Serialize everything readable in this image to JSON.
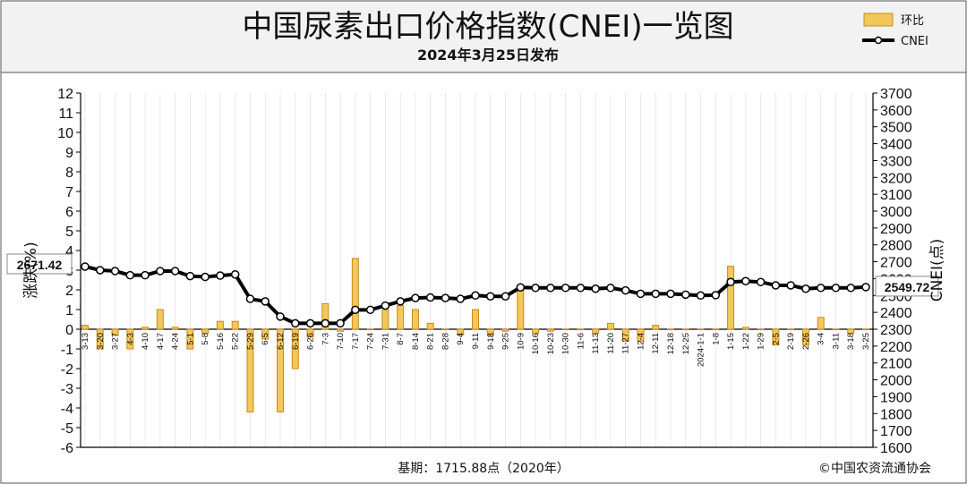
{
  "chart_data": {
    "type": "bar",
    "title": "中国尿素出口价格指数(CNEI)一览图",
    "subtitle": "2024年3月25日发布",
    "legend": [
      {
        "label": "环比",
        "kind": "bar"
      },
      {
        "label": "CNEI",
        "kind": "line"
      }
    ],
    "legend_position": "top-right",
    "y_left_label": "涨跌(%)",
    "y_right_label": "CNEI(点)",
    "y_left_range": [
      -6,
      12
    ],
    "y_right_range": [
      1600,
      3700
    ],
    "y_left_ticks": [
      "12",
      "11",
      "10",
      "9",
      "8",
      "7",
      "6",
      "5",
      "4",
      "3",
      "2",
      "1",
      "0",
      "-1",
      "-2",
      "-3",
      "-4",
      "-5",
      "-6"
    ],
    "y_right_ticks": [
      "3700",
      "3600",
      "3500",
      "3400",
      "3300",
      "3200",
      "3100",
      "3000",
      "2900",
      "2800",
      "2700",
      "2600",
      "2500",
      "2400",
      "2300",
      "2200",
      "2100",
      "2000",
      "1900",
      "1800",
      "1700",
      "1600"
    ],
    "categories": [
      "3-13",
      "3-20",
      "3-27",
      "4-3",
      "4-10",
      "4-17",
      "4-24",
      "5-1",
      "5-8",
      "5-16",
      "5-22",
      "5-29",
      "6-5",
      "6-12",
      "6-19",
      "6-26",
      "7-3",
      "7-10",
      "7-17",
      "7-24",
      "7-31",
      "8-7",
      "8-14",
      "8-21",
      "8-28",
      "9-4",
      "9-11",
      "9-18",
      "9-25",
      "10-9",
      "10-16",
      "10-23",
      "10-30",
      "11-6",
      "11-13",
      "11-20",
      "11-27",
      "12-4",
      "12-11",
      "12-18",
      "12-25",
      "2024-1-1",
      "1-8",
      "1-15",
      "1-22",
      "1-29",
      "2-5",
      "2-19",
      "2-26",
      "3-4",
      "3-11",
      "3-18",
      "3-25"
    ],
    "series": [
      {
        "name": "环比",
        "axis": "left",
        "values": [
          0.2,
          -1.0,
          -0.3,
          -1.0,
          0.1,
          1.0,
          0.1,
          -1.0,
          -0.2,
          0.4,
          0.4,
          -4.2,
          -0.5,
          -4.2,
          -2.0,
          -0.4,
          1.3,
          -0.1,
          3.6,
          0.0,
          1.0,
          1.2,
          1.0,
          0.3,
          0.0,
          -0.3,
          1.0,
          -0.3,
          -0.1,
          2.0,
          -0.2,
          -0.1,
          0.0,
          0.0,
          -0.2,
          0.3,
          -0.6,
          -0.6,
          0.2,
          0.0,
          0.0,
          0.0,
          0.0,
          3.2,
          0.1,
          0.0,
          -0.8,
          0.0,
          -0.8,
          0.6,
          0.0,
          -0.2,
          0.0
        ]
      },
      {
        "name": "CNEI",
        "axis": "right",
        "values": [
          2671.42,
          2650,
          2645,
          2620,
          2620,
          2645,
          2645,
          2615,
          2610,
          2618,
          2625,
          2480,
          2465,
          2375,
          2335,
          2335,
          2335,
          2335,
          2415,
          2415,
          2440,
          2465,
          2485,
          2488,
          2485,
          2480,
          2500,
          2495,
          2495,
          2548,
          2545,
          2545,
          2545,
          2545,
          2540,
          2545,
          2530,
          2510,
          2510,
          2510,
          2505,
          2500,
          2502,
          2580,
          2585,
          2580,
          2560,
          2560,
          2540,
          2545,
          2545,
          2545,
          2549.72
        ]
      }
    ],
    "callouts": {
      "first": "2671.42",
      "last": "2549.72"
    },
    "footnote_base": "基期：1715.88点（2020年）",
    "footnote_source": "©中国农资流通协会",
    "colors": {
      "bar_fill": "#f2c85a",
      "bar_stroke": "#c98a1a",
      "line": "#000000",
      "marker_fill": "#ffffff",
      "header_bg": "#f2f2f2",
      "grid": "#dddddd"
    }
  }
}
